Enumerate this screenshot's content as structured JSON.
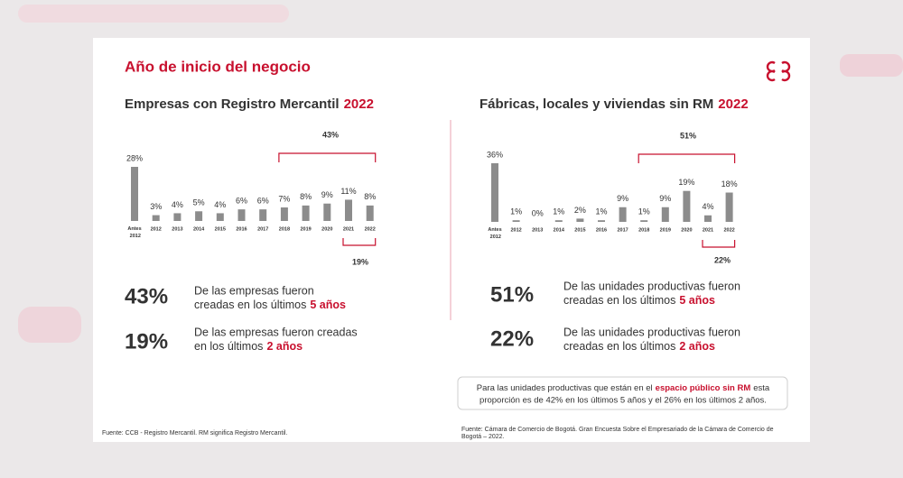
{
  "slide": {
    "title": "Año de inicio del negocio",
    "stats": [
      {
        "big": "43%",
        "lines": [
          "De las empresas fueron",
          "creadas en los últimos"
        ],
        "highlight": "5 años"
      },
      {
        "big": "19%",
        "lines": [
          "De las empresas fueron creadas",
          "en los últimos"
        ],
        "highlight": "2 años"
      },
      {
        "big": "51%",
        "lines": [
          "De las unidades productivas fueron",
          "creadas en los últimos"
        ],
        "highlight": "5 años"
      },
      {
        "big": "22%",
        "lines": [
          "De las unidades productivas fueron",
          "creadas en los últimos"
        ],
        "highlight": "2 años"
      }
    ],
    "note": {
      "before": "Para las unidades productivas que están en el",
      "highlight": "espacio público sin RM",
      "after": "esta",
      "line2": "proporción es de 42% en los últimos 5 años y el 26% en los últimos 2 años."
    },
    "footnote_left": "Fuente: CCB - Registro Mercantil. RM significa Registro Mercantil.",
    "footnote_right": [
      "Fuente: Cámara de Comercio de Bogotá. Gran Encuesta Sobre el Empresariado de la Cámara de Comercio de",
      "Bogotá – 2022."
    ]
  },
  "chart_data": [
    {
      "type": "bar",
      "title": "Empresas con Registro Mercantil",
      "title_highlight": "2022",
      "categories": [
        "Antes 2012",
        "2012",
        "2013",
        "2014",
        "2015",
        "2016",
        "2017",
        "2018",
        "2019",
        "2020",
        "2021",
        "2022"
      ],
      "values": [
        28,
        3,
        4,
        5,
        4,
        6,
        6,
        7,
        8,
        9,
        11,
        8
      ],
      "value_labels": [
        "28%",
        "3%",
        "4%",
        "5%",
        "4%",
        "6%",
        "6%",
        "7%",
        "8%",
        "9%",
        "11%",
        "8%"
      ],
      "color": "#8c8c8c",
      "label_color": "#d9536c",
      "annotations": [
        "43%",
        "19%"
      ]
    },
    {
      "type": "bar",
      "title": "Fábricas, locales y viviendas sin RM",
      "title_highlight": "2022",
      "categories": [
        "Antes 2012",
        "2012",
        "2013",
        "2014",
        "2015",
        "2016",
        "2017",
        "2018",
        "2019",
        "2020",
        "2021",
        "2022"
      ],
      "values": [
        36,
        1,
        0,
        1,
        2,
        1,
        9,
        1,
        9,
        19,
        4,
        18
      ],
      "value_labels": [
        "36%",
        "1%",
        "0%",
        "1%",
        "2%",
        "1%",
        "9%",
        "1%",
        "9%",
        "19%",
        "4%",
        "18%"
      ],
      "color": "#8c8c8c",
      "label_color": "#d9536c",
      "annotations": [
        "51%",
        "22%"
      ]
    }
  ]
}
